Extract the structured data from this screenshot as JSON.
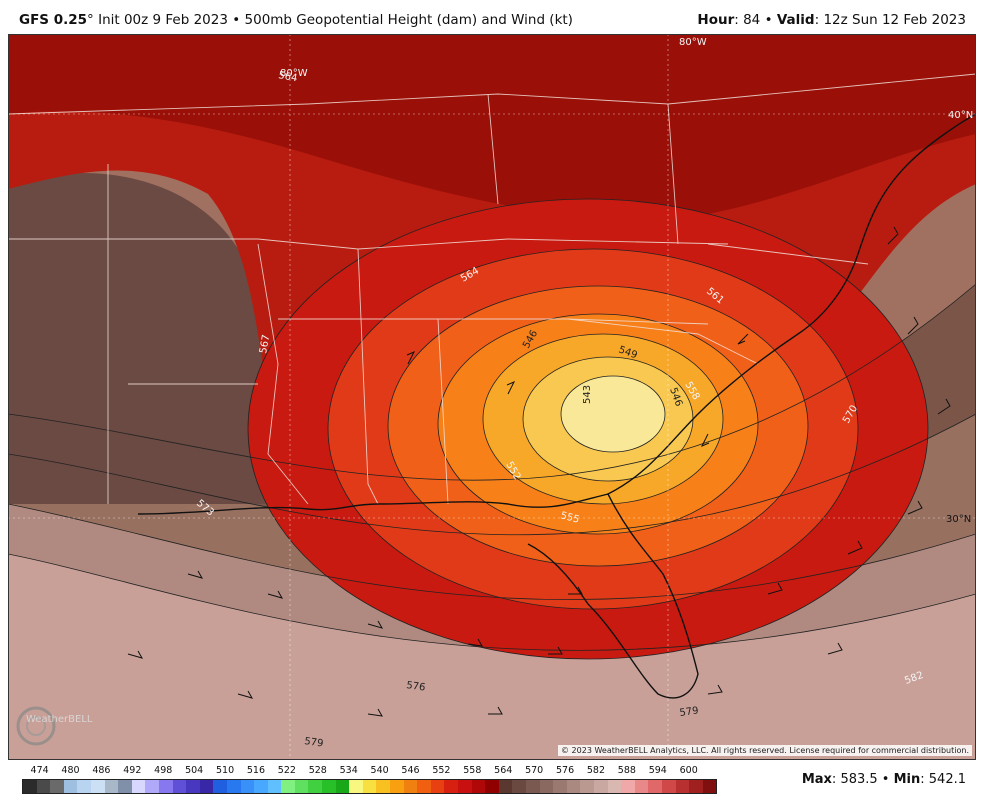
{
  "header": {
    "model": "GFS 0.25",
    "init_text": "Init 00z 9 Feb 2023",
    "separator": "•",
    "product": "500mb Geopotential Height (dam) and Wind (kt)",
    "hour_label": "Hour",
    "hour_value": "84",
    "valid_label": "Valid",
    "valid_value": "12z Sun 12 Feb 2023"
  },
  "map": {
    "grid_labels": [
      "80°W",
      "80°W",
      "40°N",
      "30°N"
    ],
    "contour_labels": [
      "564",
      "567",
      "564",
      "561",
      "558",
      "549",
      "546",
      "543",
      "546",
      "552",
      "555",
      "570",
      "573",
      "576",
      "579",
      "579",
      "582"
    ],
    "copyright": "© 2023 WeatherBELL Analytics, LLC. All rights reserved. License required for commercial distribution.",
    "watermark": "WeatherBELL"
  },
  "colorbar": {
    "ticks": [
      "474",
      "480",
      "486",
      "492",
      "498",
      "504",
      "510",
      "516",
      "522",
      "528",
      "534",
      "540",
      "546",
      "552",
      "558",
      "564",
      "570",
      "576",
      "582",
      "588",
      "594",
      "600"
    ],
    "colors": [
      "#2b2b2b",
      "#4a4a4a",
      "#6a6a6a",
      "#9fbfe0",
      "#b8d4f0",
      "#cce0f5",
      "#a8b8c8",
      "#8090a8",
      "#d8d8ff",
      "#b0a8f8",
      "#8878f0",
      "#6050d8",
      "#4838c0",
      "#3828a8",
      "#2060e0",
      "#2878f0",
      "#3890f8",
      "#48a8ff",
      "#60c0ff",
      "#80f080",
      "#60e060",
      "#40d040",
      "#28c028",
      "#18a818",
      "#f8f880",
      "#f8e040",
      "#f8c020",
      "#f8a010",
      "#f08010",
      "#f06010",
      "#e84010",
      "#d82010",
      "#c81010",
      "#b00808",
      "#900000",
      "#5a3830",
      "#6a4a40",
      "#7a5a50",
      "#8a6a60",
      "#9a7a70",
      "#aa8a80",
      "#ba9a90",
      "#c8a8a0",
      "#d8b8b0",
      "#f0a8a8",
      "#e88888",
      "#e06868",
      "#d04848",
      "#b83030",
      "#a02020",
      "#801010"
    ],
    "max_label": "Max",
    "max_value": "583.5",
    "min_label": "Min",
    "min_value": "542.1"
  }
}
